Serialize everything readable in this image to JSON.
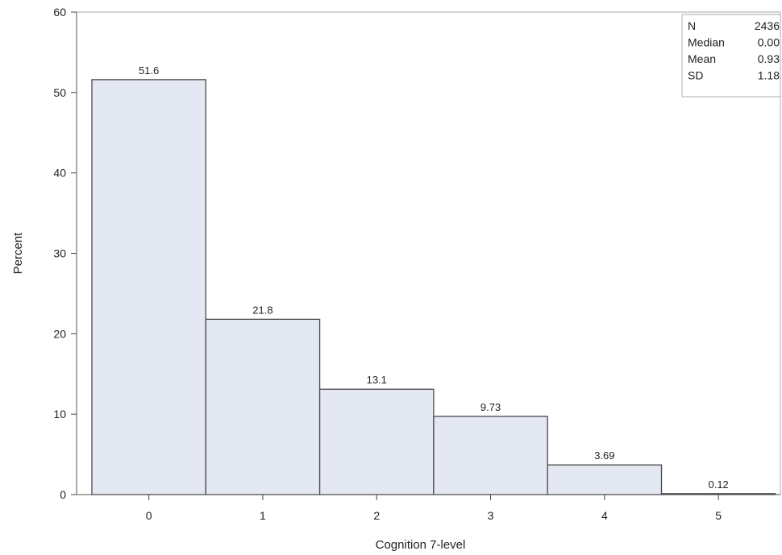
{
  "chart_data": {
    "type": "bar",
    "categories": [
      "0",
      "1",
      "2",
      "3",
      "4",
      "5"
    ],
    "values": [
      51.6,
      21.8,
      13.1,
      9.73,
      3.69,
      0.12
    ],
    "data_labels": [
      "51.6",
      "21.8",
      "13.1",
      "9.73",
      "3.69",
      "0.12"
    ],
    "title": "",
    "xlabel": "Cognition 7-level",
    "ylabel": "Percent",
    "ylim": [
      0,
      60
    ],
    "yticks": [
      0,
      10,
      20,
      30,
      40,
      50,
      60
    ],
    "grid": false,
    "bar_fill": "#e4e8f2",
    "bar_stroke": "#4a4a4a",
    "stats_box": {
      "placement": "top-right",
      "rows": [
        {
          "label": "N",
          "value": "2436"
        },
        {
          "label": "Median",
          "value": "0.00"
        },
        {
          "label": "Mean",
          "value": "0.93"
        },
        {
          "label": "SD",
          "value": "1.18"
        }
      ]
    }
  }
}
